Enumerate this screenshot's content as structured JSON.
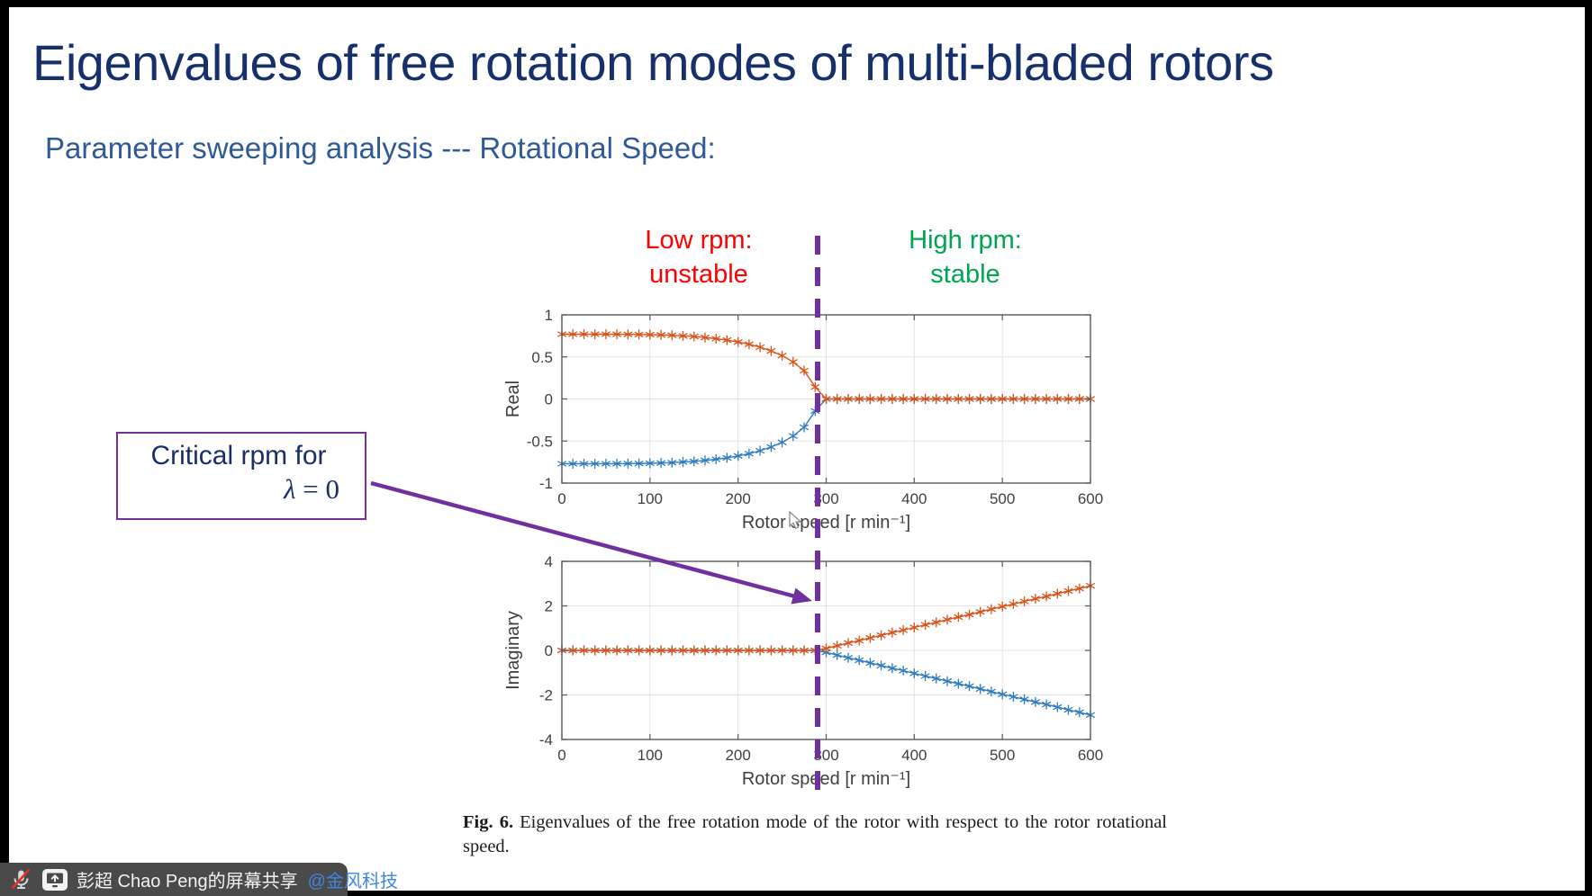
{
  "slide": {
    "title": "Eigenvalues of free rotation modes of multi-bladed rotors",
    "subtitle": "Parameter sweeping analysis --- Rotational Speed:",
    "colors": {
      "title": "#16306B",
      "subtitle": "#2E5B97"
    }
  },
  "annotations": {
    "low_rpm": {
      "line1": "Low rpm:",
      "line2": "unstable",
      "color": "#FF0000"
    },
    "high_rpm": {
      "line1": "High rpm:",
      "line2": "stable",
      "color": "#00A550"
    },
    "critical_box": {
      "line1": "Critical rpm for",
      "lambda": "λ",
      "equals": " = 0",
      "border_color": "#7030A0",
      "text_color": "#1A2E6A"
    },
    "divider": {
      "color": "#7030A0",
      "critical_speed_rpm": 290
    }
  },
  "caption": {
    "label": "Fig. 6.",
    "text": "Eigenvalues of the free rotation mode of the rotor with respect to the rotor rotational speed."
  },
  "share_bar": {
    "text": "彭超 Chao Peng的屏幕共享",
    "mention": "@金风科技",
    "bg": "#4A4A4A",
    "text_color": "#F2F2F2",
    "mention_color": "#3F86E0"
  },
  "chart_data": [
    {
      "id": "real",
      "type": "line",
      "marker": "asterisk",
      "grid": true,
      "xlabel": "Rotor speed [r min⁻¹]",
      "ylabel": "Real",
      "xlim": [
        0,
        600
      ],
      "ylim": [
        -1,
        1
      ],
      "xticks": [
        0,
        100,
        200,
        300,
        400,
        500,
        600
      ],
      "yticks": [
        -1,
        -0.5,
        0,
        0.5,
        1
      ],
      "x": [
        0,
        12.5,
        25,
        37.5,
        50,
        62.5,
        75,
        87.5,
        100,
        112.5,
        125,
        137.5,
        150,
        162.5,
        175,
        187.5,
        200,
        212.5,
        225,
        237.5,
        250,
        262.5,
        275,
        287.5,
        300,
        312.5,
        325,
        337.5,
        350,
        362.5,
        375,
        387.5,
        400,
        412.5,
        425,
        437.5,
        450,
        462.5,
        475,
        487.5,
        500,
        512.5,
        525,
        537.5,
        550,
        562.5,
        575,
        587.5,
        600
      ],
      "series": [
        {
          "name": "eigenvalue-negative-branch-real",
          "color": "#2E7BBE",
          "values": [
            -0.77,
            -0.77,
            -0.77,
            -0.77,
            -0.77,
            -0.769,
            -0.768,
            -0.767,
            -0.765,
            -0.761,
            -0.757,
            -0.75,
            -0.742,
            -0.731,
            -0.717,
            -0.699,
            -0.677,
            -0.65,
            -0.615,
            -0.571,
            -0.515,
            -0.441,
            -0.337,
            -0.142,
            0,
            0,
            0,
            0,
            0,
            0,
            0,
            0,
            0,
            0,
            0,
            0,
            0,
            0,
            0,
            0,
            0,
            0,
            0,
            0,
            0,
            0,
            0,
            0,
            0
          ]
        },
        {
          "name": "eigenvalue-positive-branch-real",
          "color": "#D95319",
          "values": [
            0.77,
            0.77,
            0.77,
            0.77,
            0.77,
            0.769,
            0.768,
            0.767,
            0.765,
            0.761,
            0.757,
            0.75,
            0.742,
            0.731,
            0.717,
            0.699,
            0.677,
            0.65,
            0.615,
            0.571,
            0.515,
            0.441,
            0.337,
            0.142,
            0,
            0,
            0,
            0,
            0,
            0,
            0,
            0,
            0,
            0,
            0,
            0,
            0,
            0,
            0,
            0,
            0,
            0,
            0,
            0,
            0,
            0,
            0,
            0,
            0
          ]
        }
      ]
    },
    {
      "id": "imaginary",
      "type": "line",
      "marker": "asterisk",
      "grid": true,
      "xlabel": "Rotor speed [r min⁻¹]",
      "ylabel": "Imaginary",
      "xlim": [
        0,
        600
      ],
      "ylim": [
        -4,
        4
      ],
      "xticks": [
        0,
        100,
        200,
        300,
        400,
        500,
        600
      ],
      "yticks": [
        -4,
        -2,
        0,
        2,
        4
      ],
      "x": [
        0,
        12.5,
        25,
        37.5,
        50,
        62.5,
        75,
        87.5,
        100,
        112.5,
        125,
        137.5,
        150,
        162.5,
        175,
        187.5,
        200,
        212.5,
        225,
        237.5,
        250,
        262.5,
        275,
        287.5,
        300,
        312.5,
        325,
        337.5,
        350,
        362.5,
        375,
        387.5,
        400,
        412.5,
        425,
        437.5,
        450,
        462.5,
        475,
        487.5,
        500,
        512.5,
        525,
        537.5,
        550,
        562.5,
        575,
        587.5,
        600
      ],
      "series": [
        {
          "name": "eigenvalue-negative-branch-imag",
          "color": "#2E7BBE",
          "values": [
            0,
            0,
            0,
            0,
            0,
            0,
            0,
            0,
            0,
            0,
            0,
            0,
            0,
            0,
            0,
            0,
            0,
            0,
            0,
            0,
            0,
            0,
            0,
            0,
            -0.09,
            -0.21,
            -0.33,
            -0.44,
            -0.56,
            -0.68,
            -0.8,
            -0.91,
            -1.03,
            -1.15,
            -1.26,
            -1.38,
            -1.5,
            -1.61,
            -1.73,
            -1.85,
            -1.97,
            -2.08,
            -2.2,
            -2.32,
            -2.43,
            -2.55,
            -2.67,
            -2.78,
            -2.9
          ]
        },
        {
          "name": "eigenvalue-positive-branch-imag",
          "color": "#D95319",
          "values": [
            0,
            0,
            0,
            0,
            0,
            0,
            0,
            0,
            0,
            0,
            0,
            0,
            0,
            0,
            0,
            0,
            0,
            0,
            0,
            0,
            0,
            0,
            0,
            0,
            0.09,
            0.21,
            0.33,
            0.44,
            0.56,
            0.68,
            0.8,
            0.91,
            1.03,
            1.15,
            1.26,
            1.38,
            1.5,
            1.61,
            1.73,
            1.85,
            1.97,
            2.08,
            2.2,
            2.32,
            2.43,
            2.55,
            2.67,
            2.78,
            2.9
          ]
        }
      ]
    }
  ]
}
